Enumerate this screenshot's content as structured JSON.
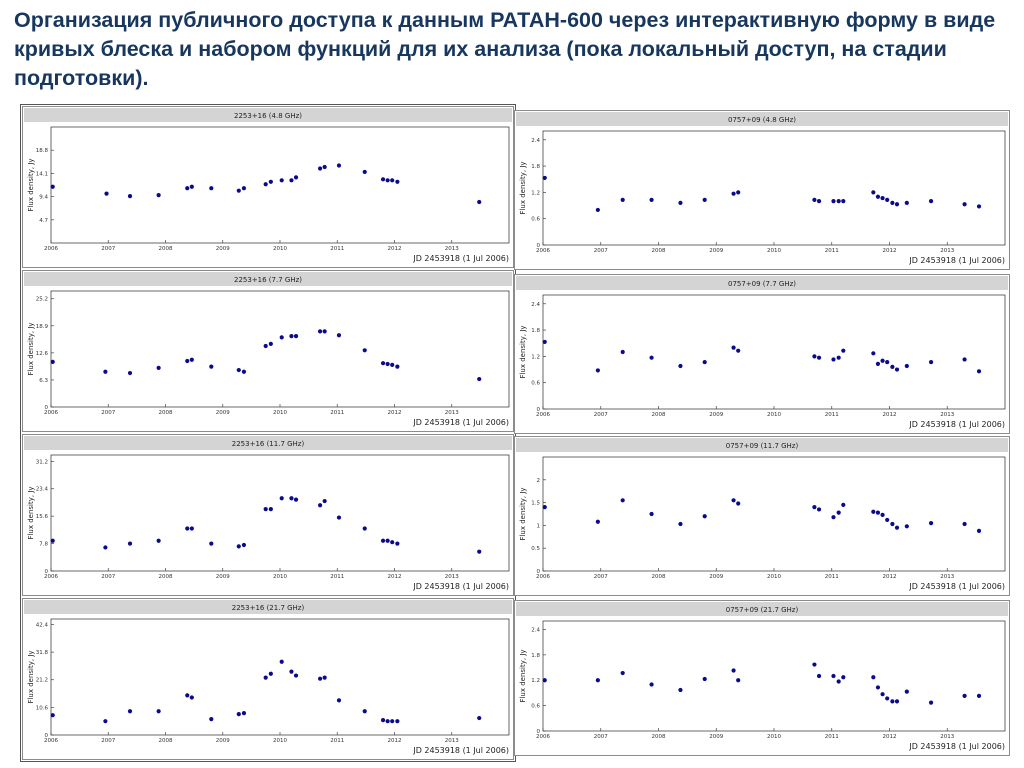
{
  "slide": {
    "title": "Организация публичного доступа к данным РАТАН-600 через интерактивную форму в виде кривых блеска и набором функций для их анализа (пока локальный доступ, на стадии подготовки)."
  },
  "colors": {
    "marker": "#0a0a8c",
    "header": "#d4d4d4",
    "title": "#17375e"
  },
  "chart_data": [
    {
      "type": "scatter",
      "title": "2253+16 (4.8 GHz)",
      "ylabel": "Flux density, Jy",
      "footer": "JD 2453918 (1 Jul 2006)",
      "xlim": [
        2006,
        2014
      ],
      "ylim": [
        0,
        23.5
      ],
      "yticks": [
        "4.7",
        "9.4",
        "14.1",
        "18.8"
      ],
      "ytick_values": [
        4.7,
        9.4,
        14.1,
        18.8
      ],
      "xticks": [
        "2006",
        "2007",
        "2008",
        "2009",
        "2010",
        "2011",
        "2012",
        "2013"
      ],
      "xtick_values": [
        2006,
        2007,
        2008,
        2009,
        2010,
        2011,
        2012,
        2013
      ],
      "points": [
        [
          2006.03,
          11.4
        ],
        [
          2006.97,
          10.0
        ],
        [
          2007.38,
          9.5
        ],
        [
          2007.88,
          9.7
        ],
        [
          2008.38,
          11.1
        ],
        [
          2008.46,
          11.4
        ],
        [
          2008.8,
          11.1
        ],
        [
          2009.28,
          10.6
        ],
        [
          2009.37,
          11.1
        ],
        [
          2009.75,
          11.9
        ],
        [
          2009.84,
          12.4
        ],
        [
          2010.03,
          12.7
        ],
        [
          2010.2,
          12.7
        ],
        [
          2010.28,
          13.3
        ],
        [
          2010.7,
          15.1
        ],
        [
          2010.78,
          15.4
        ],
        [
          2011.03,
          15.7
        ],
        [
          2011.48,
          14.4
        ],
        [
          2011.8,
          12.9
        ],
        [
          2011.88,
          12.7
        ],
        [
          2011.96,
          12.7
        ],
        [
          2012.05,
          12.4
        ],
        [
          2013.48,
          8.3
        ]
      ]
    },
    {
      "type": "scatter",
      "title": "0757+09 (4.8 GHz)",
      "ylabel": "Flux density, Jy",
      "footer": "JD 2453918 (1 Jul 2006)",
      "xlim": [
        2006,
        2014
      ],
      "ylim": [
        0,
        2.6
      ],
      "yticks": [
        "0",
        "0.6",
        "1.2",
        "1.8",
        "2.4"
      ],
      "ytick_values": [
        0,
        0.6,
        1.2,
        1.8,
        2.4
      ],
      "xticks": [
        "2006",
        "2007",
        "2008",
        "2009",
        "2010",
        "2011",
        "2012",
        "2013"
      ],
      "xtick_values": [
        2006,
        2007,
        2008,
        2009,
        2010,
        2011,
        2012,
        2013
      ],
      "points": [
        [
          2006.03,
          1.53
        ],
        [
          2006.95,
          0.8
        ],
        [
          2007.38,
          1.03
        ],
        [
          2007.88,
          1.03
        ],
        [
          2008.38,
          0.96
        ],
        [
          2008.8,
          1.03
        ],
        [
          2009.3,
          1.17
        ],
        [
          2009.38,
          1.2
        ],
        [
          2010.7,
          1.03
        ],
        [
          2010.78,
          1.0
        ],
        [
          2011.03,
          1.0
        ],
        [
          2011.12,
          1.0
        ],
        [
          2011.2,
          1.0
        ],
        [
          2011.72,
          1.2
        ],
        [
          2011.8,
          1.1
        ],
        [
          2011.88,
          1.07
        ],
        [
          2011.96,
          1.03
        ],
        [
          2012.05,
          0.96
        ],
        [
          2012.13,
          0.93
        ],
        [
          2012.3,
          0.96
        ],
        [
          2012.72,
          1.0
        ],
        [
          2013.3,
          0.93
        ],
        [
          2013.55,
          0.88
        ]
      ]
    },
    {
      "type": "scatter",
      "title": "2253+16 (7.7 GHz)",
      "ylabel": "Flux density, Jy",
      "footer": "JD 2453918 (1 Jul 2006)",
      "xlim": [
        2006,
        2014
      ],
      "ylim": [
        0,
        27
      ],
      "yticks": [
        "0",
        "6.3",
        "12.6",
        "18.9",
        "25.2"
      ],
      "ytick_values": [
        0,
        6.3,
        12.6,
        18.9,
        25.2
      ],
      "xticks": [
        "2006",
        "2007",
        "2008",
        "2009",
        "2010",
        "2011",
        "2012",
        "2013"
      ],
      "xtick_values": [
        2006,
        2007,
        2008,
        2009,
        2010,
        2011,
        2012,
        2013
      ],
      "points": [
        [
          2006.03,
          10.5
        ],
        [
          2006.95,
          8.2
        ],
        [
          2007.38,
          7.9
        ],
        [
          2007.88,
          9.1
        ],
        [
          2008.38,
          10.7
        ],
        [
          2008.46,
          11.0
        ],
        [
          2008.8,
          9.4
        ],
        [
          2009.28,
          8.6
        ],
        [
          2009.37,
          8.2
        ],
        [
          2009.75,
          14.2
        ],
        [
          2009.84,
          14.7
        ],
        [
          2010.03,
          16.2
        ],
        [
          2010.2,
          16.5
        ],
        [
          2010.28,
          16.5
        ],
        [
          2010.7,
          17.6
        ],
        [
          2010.78,
          17.6
        ],
        [
          2011.03,
          16.7
        ],
        [
          2011.48,
          13.2
        ],
        [
          2011.8,
          10.2
        ],
        [
          2011.88,
          10.0
        ],
        [
          2011.96,
          9.8
        ],
        [
          2012.05,
          9.4
        ],
        [
          2013.48,
          6.5
        ]
      ]
    },
    {
      "type": "scatter",
      "title": "0757+09 (7.7 GHz)",
      "ylabel": "Flux density, Jy",
      "footer": "JD 2453918 (1 Jul 2006)",
      "xlim": [
        2006,
        2014
      ],
      "ylim": [
        0,
        2.6
      ],
      "yticks": [
        "0",
        "0.6",
        "1.2",
        "1.8",
        "2.4"
      ],
      "ytick_values": [
        0,
        0.6,
        1.2,
        1.8,
        2.4
      ],
      "xticks": [
        "2006",
        "2007",
        "2008",
        "2009",
        "2010",
        "2011",
        "2012",
        "2013"
      ],
      "xtick_values": [
        2006,
        2007,
        2008,
        2009,
        2010,
        2011,
        2012,
        2013
      ],
      "points": [
        [
          2006.03,
          1.53
        ],
        [
          2006.95,
          0.88
        ],
        [
          2007.38,
          1.3
        ],
        [
          2007.88,
          1.17
        ],
        [
          2008.38,
          0.98
        ],
        [
          2008.8,
          1.07
        ],
        [
          2009.3,
          1.4
        ],
        [
          2009.38,
          1.33
        ],
        [
          2010.7,
          1.2
        ],
        [
          2010.78,
          1.17
        ],
        [
          2011.03,
          1.13
        ],
        [
          2011.12,
          1.17
        ],
        [
          2011.2,
          1.33
        ],
        [
          2011.72,
          1.27
        ],
        [
          2011.8,
          1.03
        ],
        [
          2011.88,
          1.1
        ],
        [
          2011.96,
          1.07
        ],
        [
          2012.05,
          0.96
        ],
        [
          2012.13,
          0.9
        ],
        [
          2012.3,
          0.98
        ],
        [
          2012.72,
          1.07
        ],
        [
          2013.3,
          1.13
        ],
        [
          2013.55,
          0.86
        ]
      ]
    },
    {
      "type": "scatter",
      "title": "2253+16 (11.7 GHz)",
      "ylabel": "Flux density, Jy",
      "footer": "JD 2453918 (1 Jul 2006)",
      "xlim": [
        2006,
        2014
      ],
      "ylim": [
        0,
        33
      ],
      "yticks": [
        "0",
        "7.8",
        "15.6",
        "23.4",
        "31.2"
      ],
      "ytick_values": [
        0,
        7.8,
        15.6,
        23.4,
        31.2
      ],
      "xticks": [
        "2006",
        "2007",
        "2008",
        "2009",
        "2010",
        "2011",
        "2012",
        "2013"
      ],
      "xtick_values": [
        2006,
        2007,
        2008,
        2009,
        2010,
        2011,
        2012,
        2013
      ],
      "points": [
        [
          2006.03,
          8.6
        ],
        [
          2006.95,
          6.7
        ],
        [
          2007.38,
          7.8
        ],
        [
          2007.88,
          8.6
        ],
        [
          2008.38,
          12.1
        ],
        [
          2008.46,
          12.1
        ],
        [
          2008.8,
          7.8
        ],
        [
          2009.28,
          7.0
        ],
        [
          2009.37,
          7.4
        ],
        [
          2009.75,
          17.6
        ],
        [
          2009.84,
          17.6
        ],
        [
          2010.03,
          20.7
        ],
        [
          2010.2,
          20.7
        ],
        [
          2010.28,
          20.3
        ],
        [
          2010.7,
          18.7
        ],
        [
          2010.78,
          19.9
        ],
        [
          2011.03,
          15.2
        ],
        [
          2011.48,
          12.1
        ],
        [
          2011.8,
          8.6
        ],
        [
          2011.88,
          8.6
        ],
        [
          2011.96,
          8.2
        ],
        [
          2012.05,
          7.8
        ],
        [
          2013.48,
          5.5
        ]
      ]
    },
    {
      "type": "scatter",
      "title": "0757+09 (11.7 GHz)",
      "ylabel": "Flux density, Jy",
      "footer": "JD 2453918 (1 Jul 2006)",
      "xlim": [
        2006,
        2014
      ],
      "ylim": [
        0,
        2.5
      ],
      "yticks": [
        "0",
        "0.5",
        "1",
        "1.5",
        "2"
      ],
      "ytick_values": [
        0,
        0.5,
        1,
        1.5,
        2
      ],
      "xticks": [
        "2006",
        "2007",
        "2008",
        "2009",
        "2010",
        "2011",
        "2012",
        "2013"
      ],
      "xtick_values": [
        2006,
        2007,
        2008,
        2009,
        2010,
        2011,
        2012,
        2013
      ],
      "points": [
        [
          2006.03,
          1.4
        ],
        [
          2006.95,
          1.08
        ],
        [
          2007.38,
          1.55
        ],
        [
          2007.88,
          1.25
        ],
        [
          2008.38,
          1.03
        ],
        [
          2008.8,
          1.2
        ],
        [
          2009.3,
          1.55
        ],
        [
          2009.38,
          1.48
        ],
        [
          2010.7,
          1.4
        ],
        [
          2010.78,
          1.35
        ],
        [
          2011.03,
          1.18
        ],
        [
          2011.12,
          1.28
        ],
        [
          2011.2,
          1.45
        ],
        [
          2011.72,
          1.3
        ],
        [
          2011.8,
          1.28
        ],
        [
          2011.88,
          1.23
        ],
        [
          2011.96,
          1.12
        ],
        [
          2012.05,
          1.03
        ],
        [
          2012.13,
          0.95
        ],
        [
          2012.3,
          0.98
        ],
        [
          2012.72,
          1.05
        ],
        [
          2013.3,
          1.03
        ],
        [
          2013.55,
          0.88
        ]
      ]
    },
    {
      "type": "scatter",
      "title": "2253+16 (21.7 GHz)",
      "ylabel": "Flux density, Jy",
      "footer": "JD 2453918 (1 Jul 2006)",
      "xlim": [
        2006,
        2014
      ],
      "ylim": [
        0,
        44.5
      ],
      "yticks": [
        "0",
        "10.6",
        "21.2",
        "31.8",
        "42.4"
      ],
      "ytick_values": [
        0,
        10.6,
        21.2,
        31.8,
        42.4
      ],
      "xticks": [
        "2006",
        "2007",
        "2008",
        "2009",
        "2010",
        "2011",
        "2012",
        "2013"
      ],
      "xtick_values": [
        2006,
        2007,
        2008,
        2009,
        2010,
        2011,
        2012,
        2013
      ],
      "points": [
        [
          2006.03,
          7.6
        ],
        [
          2006.95,
          5.3
        ],
        [
          2007.38,
          9.1
        ],
        [
          2007.88,
          9.1
        ],
        [
          2008.38,
          15.2
        ],
        [
          2008.46,
          14.4
        ],
        [
          2008.8,
          6.1
        ],
        [
          2009.28,
          8.0
        ],
        [
          2009.37,
          8.4
        ],
        [
          2009.75,
          22.0
        ],
        [
          2009.84,
          23.5
        ],
        [
          2010.03,
          28.1
        ],
        [
          2010.2,
          24.3
        ],
        [
          2010.28,
          22.8
        ],
        [
          2010.7,
          21.6
        ],
        [
          2010.78,
          22.0
        ],
        [
          2011.03,
          13.3
        ],
        [
          2011.48,
          9.1
        ],
        [
          2011.8,
          5.7
        ],
        [
          2011.88,
          5.3
        ],
        [
          2011.96,
          5.3
        ],
        [
          2012.05,
          5.3
        ],
        [
          2013.48,
          6.5
        ]
      ]
    },
    {
      "type": "scatter",
      "title": "0757+09 (21.7 GHz)",
      "ylabel": "Flux density, Jy",
      "footer": "JD 2453918 (1 Jul 2006)",
      "xlim": [
        2006,
        2014
      ],
      "ylim": [
        0,
        2.6
      ],
      "yticks": [
        "0",
        "0.6",
        "1.2",
        "1.8",
        "2.4"
      ],
      "ytick_values": [
        0,
        0.6,
        1.2,
        1.8,
        2.4
      ],
      "xticks": [
        "2006",
        "2007",
        "2008",
        "2009",
        "2010",
        "2011",
        "2012",
        "2013"
      ],
      "xtick_values": [
        2006,
        2007,
        2008,
        2009,
        2010,
        2011,
        2012,
        2013
      ],
      "points": [
        [
          2006.03,
          1.2
        ],
        [
          2006.95,
          1.2
        ],
        [
          2007.38,
          1.37
        ],
        [
          2007.88,
          1.1
        ],
        [
          2008.38,
          0.97
        ],
        [
          2008.8,
          1.23
        ],
        [
          2009.3,
          1.43
        ],
        [
          2009.38,
          1.2
        ],
        [
          2010.7,
          1.57
        ],
        [
          2010.78,
          1.3
        ],
        [
          2011.03,
          1.3
        ],
        [
          2011.12,
          1.17
        ],
        [
          2011.2,
          1.27
        ],
        [
          2011.72,
          1.27
        ],
        [
          2011.8,
          1.03
        ],
        [
          2011.88,
          0.87
        ],
        [
          2011.96,
          0.77
        ],
        [
          2012.05,
          0.7
        ],
        [
          2012.13,
          0.7
        ],
        [
          2012.3,
          0.93
        ],
        [
          2012.72,
          0.67
        ],
        [
          2013.3,
          0.83
        ],
        [
          2013.55,
          0.83
        ]
      ]
    }
  ]
}
